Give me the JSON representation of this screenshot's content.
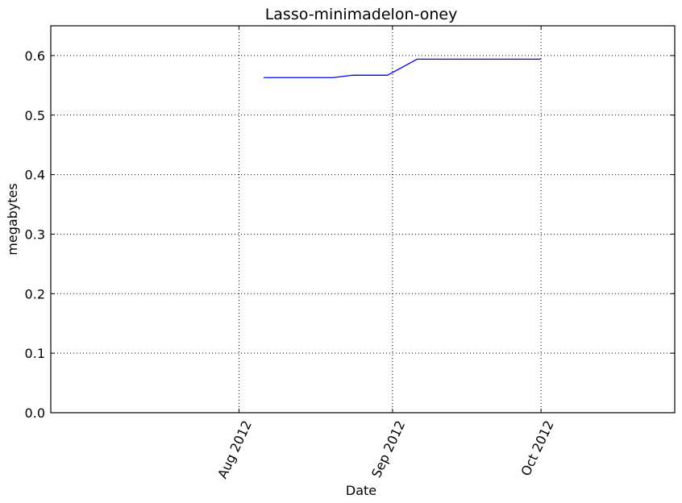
{
  "chart_data": {
    "type": "line",
    "title": "Lasso-minimadelon-oney",
    "xlabel": "Date",
    "ylabel": "megabytes",
    "x_type": "date",
    "xlim": [
      "2012-06-24",
      "2012-10-28"
    ],
    "ylim": [
      0,
      0.65
    ],
    "x_ticks": [
      {
        "value": "2012-08-01",
        "label": "Aug 2012"
      },
      {
        "value": "2012-09-01",
        "label": "Sep 2012"
      },
      {
        "value": "2012-10-01",
        "label": "Oct 2012"
      }
    ],
    "y_ticks": [
      {
        "value": 0.0,
        "label": "0.0"
      },
      {
        "value": 0.1,
        "label": "0.1"
      },
      {
        "value": 0.2,
        "label": "0.2"
      },
      {
        "value": 0.3,
        "label": "0.3"
      },
      {
        "value": 0.4,
        "label": "0.4"
      },
      {
        "value": 0.5,
        "label": "0.5"
      },
      {
        "value": 0.6,
        "label": "0.6"
      }
    ],
    "grid": true,
    "series": [
      {
        "color": "#0000ff",
        "points": [
          {
            "x": "2012-08-06",
            "y": 0.563
          },
          {
            "x": "2012-08-20",
            "y": 0.563
          },
          {
            "x": "2012-08-24",
            "y": 0.567
          },
          {
            "x": "2012-08-31",
            "y": 0.567
          },
          {
            "x": "2012-09-06",
            "y": 0.594
          },
          {
            "x": "2012-09-11",
            "y": 0.594
          },
          {
            "x": "2012-10-01",
            "y": 0.594
          }
        ]
      }
    ]
  }
}
